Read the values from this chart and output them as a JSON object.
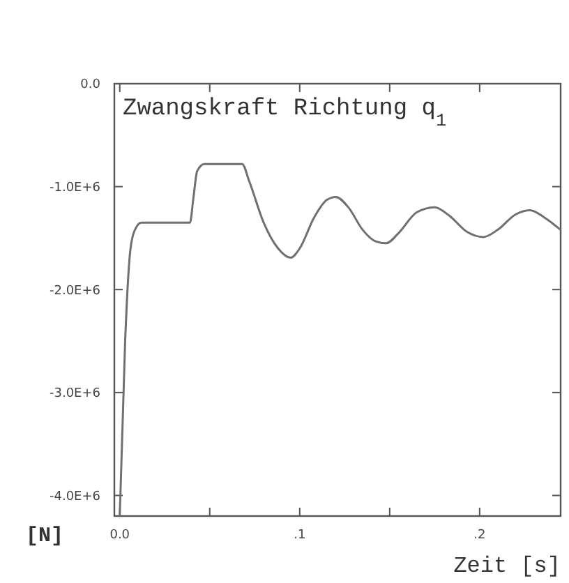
{
  "chart_data": {
    "type": "line",
    "title": "Zwangskraft Richtung q$_{1}$",
    "xlabel": "Zeit [s]",
    "ylabel": "[N]",
    "xlim": [
      -0.003,
      0.245
    ],
    "ylim": [
      -4200000,
      0
    ],
    "xticks": [
      {
        "value": 0,
        "label": "0.0"
      },
      {
        "value": 0.05,
        "label": null
      },
      {
        "value": 0.1,
        "label": ".1"
      },
      {
        "value": 0.15,
        "label": null
      },
      {
        "value": 0.2,
        "label": ".2"
      }
    ],
    "yticks": [
      {
        "value": 0,
        "label": "0.0"
      },
      {
        "value": -1000000,
        "label": "-1.0E+6"
      },
      {
        "value": -2000000,
        "label": "-2.0E+6"
      },
      {
        "value": -3000000,
        "label": "-3.0E+6"
      },
      {
        "value": -4000000,
        "label": "-4.0E+6"
      }
    ],
    "grid": false,
    "line_style": "solid",
    "series": [
      {
        "color": "#707070",
        "x": [
          0,
          0.003,
          0.006,
          0.009,
          0.012,
          0.039,
          0.041,
          0.043,
          0.047,
          0.068,
          0.072,
          0.08,
          0.088,
          0.095,
          0.1,
          0.108,
          0.115,
          0.12,
          0.127,
          0.135,
          0.142,
          0.148,
          0.155,
          0.165,
          0.175,
          0.183,
          0.193,
          0.202,
          0.21,
          0.22,
          0.228,
          0.236,
          0.245
        ],
        "values": [
          -4200000,
          -2500000,
          -1600000,
          -1400000,
          -1350000,
          -1350000,
          -1100000,
          -850000,
          -780000,
          -780000,
          -950000,
          -1350000,
          -1600000,
          -1690000,
          -1600000,
          -1300000,
          -1130000,
          -1100000,
          -1200000,
          -1420000,
          -1530000,
          -1550000,
          -1450000,
          -1250000,
          -1200000,
          -1280000,
          -1440000,
          -1490000,
          -1420000,
          -1270000,
          -1230000,
          -1300000,
          -1420000
        ]
      }
    ]
  }
}
